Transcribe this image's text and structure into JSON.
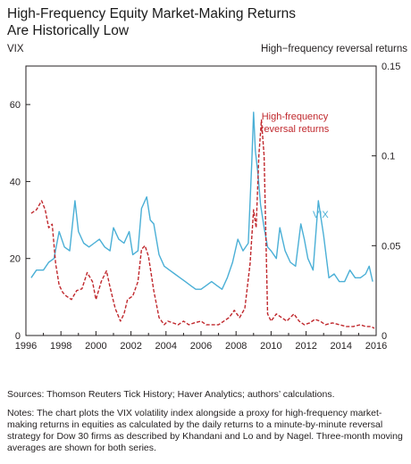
{
  "title": {
    "line1": "High-Frequency Equity Market-Making Returns",
    "line2": "Are Historically Low"
  },
  "sources": "Sources: Thomson Reuters Tick History; Haver Analytics; authors’ calculations.",
  "notes": "Notes: The chart plots the VIX volatility index alongside a proxy for high-frequency market-making returns in equities as calculated by the daily returns to a minute-by-minute reversal strategy for Dow 30 firms as described by Khandani and Lo and by Nagel. Three-month moving averages are shown for both series.",
  "colors": {
    "vix": "#4aafd6",
    "reversal": "#c0282d",
    "axis": "#231f20"
  },
  "chart_data": {
    "type": "line",
    "left_axis_title": "VIX",
    "right_axis_title": "High−frequency reversal returns",
    "x_ticks": [
      "1996",
      "1998",
      "2000",
      "2002",
      "2004",
      "2006",
      "2008",
      "2010",
      "2012",
      "2014",
      "2016"
    ],
    "left_ticks": [
      "0",
      "20",
      "40",
      "60"
    ],
    "right_ticks": [
      "0",
      "0.05",
      "0.1",
      "0.15"
    ],
    "xlim": [
      1996,
      2016
    ],
    "ylim_left": [
      0,
      70
    ],
    "ylim_right": [
      0,
      0.15
    ],
    "grid": false,
    "series": [
      {
        "name": "VIX",
        "axis": "left",
        "style": "solid",
        "x": [
          1996.3,
          1996.6,
          1997.0,
          1997.3,
          1997.6,
          1997.9,
          1998.2,
          1998.5,
          1998.8,
          1999.0,
          1999.3,
          1999.6,
          1999.9,
          2000.2,
          2000.5,
          2000.8,
          2001.0,
          2001.3,
          2001.6,
          2001.9,
          2002.1,
          2002.4,
          2002.6,
          2002.9,
          2003.1,
          2003.3,
          2003.6,
          2003.9,
          2004.2,
          2004.5,
          2004.8,
          2005.1,
          2005.4,
          2005.7,
          2006.0,
          2006.3,
          2006.6,
          2006.9,
          2007.2,
          2007.5,
          2007.8,
          2008.1,
          2008.4,
          2008.7,
          2008.9,
          2009.0,
          2009.1,
          2009.25,
          2009.4,
          2009.6,
          2009.8,
          2010.0,
          2010.3,
          2010.5,
          2010.8,
          2011.1,
          2011.4,
          2011.7,
          2011.9,
          2012.1,
          2012.4,
          2012.7,
          2013.0,
          2013.3,
          2013.6,
          2013.9,
          2014.2,
          2014.5,
          2014.8,
          2015.1,
          2015.4,
          2015.6,
          2015.8
        ],
        "values": [
          15,
          17,
          17,
          19,
          20,
          27,
          23,
          22,
          35,
          27,
          24,
          23,
          24,
          25,
          23,
          22,
          28,
          25,
          24,
          27,
          21,
          22,
          33,
          36,
          30,
          29,
          21,
          18,
          17,
          16,
          15,
          14,
          13,
          12,
          12,
          13,
          14,
          13,
          12,
          15,
          19,
          25,
          22,
          24,
          45,
          58,
          48,
          42,
          34,
          28,
          23,
          22,
          20,
          28,
          22,
          19,
          18,
          29,
          25,
          20,
          17,
          35,
          26,
          15,
          16,
          14,
          14,
          17,
          15,
          15,
          16,
          18,
          14
        ]
      },
      {
        "name": "High-frequency reversal returns",
        "axis": "right",
        "style": "dashed",
        "x": [
          1996.3,
          1996.6,
          1996.9,
          1997.1,
          1997.3,
          1997.5,
          1997.7,
          1997.9,
          1998.1,
          1998.3,
          1998.6,
          1998.9,
          1999.2,
          1999.5,
          1999.8,
          2000.0,
          2000.3,
          2000.6,
          2000.8,
          2001.1,
          2001.4,
          2001.6,
          2001.8,
          2002.1,
          2002.4,
          2002.6,
          2002.8,
          2003.0,
          2003.3,
          2003.6,
          2003.9,
          2004.1,
          2004.4,
          2004.7,
          2005.0,
          2005.3,
          2005.6,
          2006.0,
          2006.3,
          2006.6,
          2007.0,
          2007.3,
          2007.6,
          2007.9,
          2008.2,
          2008.5,
          2008.8,
          2009.0,
          2009.15,
          2009.3,
          2009.45,
          2009.6,
          2009.8,
          2010.0,
          2010.3,
          2010.6,
          2010.9,
          2011.3,
          2011.6,
          2011.9,
          2012.2,
          2012.5,
          2012.8,
          2013.1,
          2013.5,
          2013.9,
          2014.3,
          2014.7,
          2015.1,
          2015.4,
          2015.7,
          2015.9
        ],
        "values": [
          0.068,
          0.07,
          0.075,
          0.07,
          0.06,
          0.062,
          0.04,
          0.028,
          0.024,
          0.022,
          0.02,
          0.025,
          0.026,
          0.035,
          0.03,
          0.02,
          0.03,
          0.036,
          0.027,
          0.015,
          0.008,
          0.012,
          0.02,
          0.022,
          0.03,
          0.048,
          0.05,
          0.044,
          0.025,
          0.01,
          0.006,
          0.008,
          0.007,
          0.006,
          0.008,
          0.006,
          0.007,
          0.008,
          0.006,
          0.006,
          0.006,
          0.008,
          0.01,
          0.014,
          0.01,
          0.015,
          0.04,
          0.07,
          0.06,
          0.1,
          0.12,
          0.1,
          0.012,
          0.008,
          0.012,
          0.01,
          0.008,
          0.012,
          0.008,
          0.006,
          0.007,
          0.009,
          0.008,
          0.006,
          0.007,
          0.006,
          0.005,
          0.005,
          0.006,
          0.005,
          0.005,
          0.004
        ]
      }
    ],
    "annotations": [
      {
        "text_lines": [
          "High-frequency",
          "reversal returns"
        ],
        "series": "High-frequency reversal returns"
      },
      {
        "text_lines": [
          "VIX"
        ],
        "series": "VIX"
      }
    ]
  }
}
